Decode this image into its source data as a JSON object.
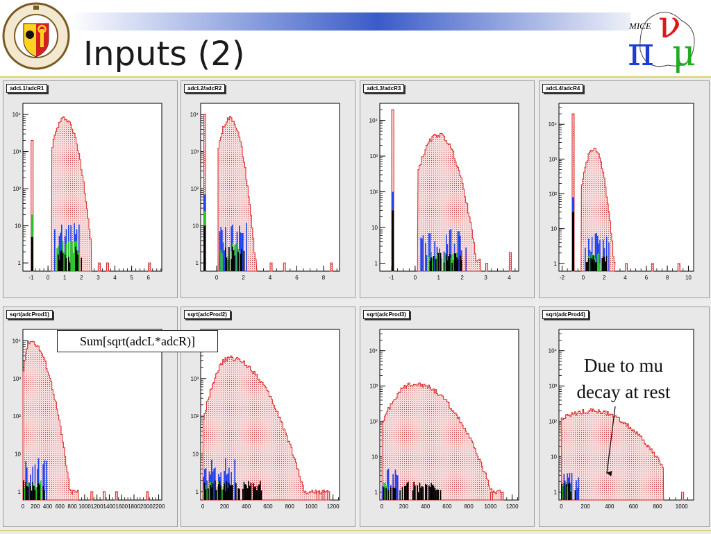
{
  "slide": {
    "title": "Inputs (2)",
    "callout": "Sum[sqrt(adcL*adcR)]",
    "annotation_line1": "Due to mu",
    "annotation_line2": "decay at rest",
    "logo_right_text": "MICE",
    "accent_color": "#d8d270",
    "header_bar_colors": [
      "#ffffff",
      "#3050b0"
    ]
  },
  "chart_data": [
    {
      "type": "histogram",
      "title": "adcL1/adcR1",
      "log_y": true,
      "xlim": [
        -1.5,
        6.8
      ],
      "ylim": [
        0.6,
        20000
      ],
      "xticks": [
        -1,
        0,
        1,
        2,
        3,
        4,
        5,
        6
      ],
      "xtick_labels": [
        "-1",
        "0",
        "1",
        "2",
        "3",
        "4",
        "5",
        "6"
      ],
      "yticks": [
        1,
        10,
        100,
        1000,
        10000
      ],
      "ytick_labels": [
        "1",
        "10",
        "10²",
        "10³",
        "10⁴"
      ],
      "series": [
        {
          "color": "#dd2222",
          "shape": "peak",
          "peak_x": 1.0,
          "peak_y": 8000,
          "width": 0.4,
          "floor": 1.2,
          "range": [
            0.2,
            2.6
          ],
          "spike_x": -0.95,
          "spike_y": 2000,
          "outliers": [
            [
              3.0,
              1
            ],
            [
              3.5,
              1
            ],
            [
              6.0,
              1
            ]
          ]
        },
        {
          "color": "#2244ee",
          "shape": "cluster",
          "range": [
            0.4,
            1.9
          ],
          "max": 12,
          "spike_x": -0.95,
          "spike_y": 20
        },
        {
          "color": "#22cc22",
          "shape": "cluster",
          "range": [
            0.5,
            1.9
          ],
          "max": 4,
          "spike_x": -0.95,
          "spike_y": 20
        },
        {
          "color": "#000000",
          "shape": "cluster",
          "range": [
            0.6,
            2.0
          ],
          "max": 3,
          "spike_x": -0.95,
          "spike_y": 5
        }
      ]
    },
    {
      "type": "histogram",
      "title": "adcL2/adcR2",
      "log_y": true,
      "xlim": [
        -1.2,
        9.2
      ],
      "ylim": [
        0.6,
        20000
      ],
      "xticks": [
        0,
        2,
        4,
        6,
        8
      ],
      "xtick_labels": [
        "0",
        "2",
        "4",
        "6",
        "8"
      ],
      "yticks": [
        1,
        10,
        100,
        1000,
        10000
      ],
      "ytick_labels": [
        "1",
        "10",
        "10²",
        "10³",
        "10⁴"
      ],
      "series": [
        {
          "color": "#dd2222",
          "shape": "peak",
          "peak_x": 1.0,
          "peak_y": 8000,
          "width": 0.45,
          "floor": 1.2,
          "range": [
            0.1,
            3.0
          ],
          "spike_x": -0.9,
          "spike_y": 10000,
          "outliers": [
            [
              4.0,
              1
            ],
            [
              5.0,
              1
            ],
            [
              8.5,
              1
            ]
          ]
        },
        {
          "color": "#2244ee",
          "shape": "cluster",
          "range": [
            0.2,
            2.3
          ],
          "max": 12,
          "spike_x": -0.9,
          "spike_y": 70
        },
        {
          "color": "#22cc22",
          "shape": "cluster",
          "range": [
            0.3,
            2.0
          ],
          "max": 4,
          "spike_x": -0.9,
          "spike_y": 25
        },
        {
          "color": "#000000",
          "shape": "cluster",
          "range": [
            0.4,
            2.2
          ],
          "max": 3,
          "spike_x": -0.9,
          "spike_y": 10
        }
      ]
    },
    {
      "type": "histogram",
      "title": "adcL3/adcR3",
      "log_y": true,
      "xlim": [
        -1.5,
        4.4
      ],
      "ylim": [
        0.6,
        30000
      ],
      "xticks": [
        -1,
        0,
        1,
        2,
        3,
        4
      ],
      "xtick_labels": [
        "-1",
        "0",
        "1",
        "2",
        "3",
        "4"
      ],
      "yticks": [
        1,
        10,
        100,
        1000,
        10000
      ],
      "ytick_labels": [
        "1",
        "10",
        "10²",
        "10³",
        "10⁴"
      ],
      "series": [
        {
          "color": "#dd2222",
          "shape": "peak",
          "peak_x": 1.0,
          "peak_y": 4000,
          "width": 0.4,
          "floor": 1.2,
          "range": [
            0.1,
            2.8
          ],
          "spike_x": -0.95,
          "spike_y": 20000,
          "outliers": [
            [
              3.0,
              1
            ],
            [
              4.0,
              2
            ]
          ]
        },
        {
          "color": "#2244ee",
          "shape": "cluster",
          "range": [
            0.2,
            2.2
          ],
          "max": 10,
          "spike_x": -0.95,
          "spike_y": 100
        },
        {
          "color": "#22cc22",
          "shape": "cluster",
          "range": [
            0.4,
            1.8
          ],
          "max": 2,
          "spike_x": -0.95,
          "spike_y": 20
        },
        {
          "color": "#000000",
          "shape": "cluster",
          "range": [
            0.6,
            2.0
          ],
          "max": 2,
          "spike_x": -0.95,
          "spike_y": 30
        }
      ]
    },
    {
      "type": "histogram",
      "title": "adcL4/adcR4",
      "log_y": true,
      "xlim": [
        -2.3,
        10.5
      ],
      "ylim": [
        0.6,
        40000
      ],
      "xticks": [
        -2,
        0,
        2,
        4,
        6,
        8,
        10
      ],
      "xtick_labels": [
        "-2",
        "0",
        "2",
        "4",
        "6",
        "8",
        "10"
      ],
      "yticks": [
        1,
        10,
        100,
        1000,
        10000
      ],
      "ytick_labels": [
        "1",
        "10",
        "10²",
        "10³",
        "10⁴"
      ],
      "series": [
        {
          "color": "#dd2222",
          "shape": "peak",
          "peak_x": 1.0,
          "peak_y": 2000,
          "width": 0.5,
          "floor": 1.2,
          "range": [
            -0.2,
            3.0
          ],
          "spike_x": -0.95,
          "spike_y": 20000,
          "outliers": [
            [
              4.0,
              1
            ],
            [
              6.5,
              1
            ],
            [
              9.0,
              1
            ]
          ]
        },
        {
          "color": "#2244ee",
          "shape": "cluster",
          "range": [
            0.0,
            2.5
          ],
          "max": 8,
          "spike_x": -0.95,
          "spike_y": 80
        },
        {
          "color": "#22cc22",
          "shape": "cluster",
          "range": [
            0.3,
            1.6
          ],
          "max": 2,
          "spike_x": -0.95,
          "spike_y": 5
        },
        {
          "color": "#000000",
          "shape": "cluster",
          "range": [
            0.3,
            2.3
          ],
          "max": 2,
          "spike_x": -0.95,
          "spike_y": 30
        }
      ]
    },
    {
      "type": "histogram",
      "title": "sqrt(adcProd1)",
      "log_y": true,
      "xlim": [
        0,
        2250
      ],
      "ylim": [
        0.6,
        20000
      ],
      "xticks": [
        0,
        200,
        400,
        600,
        800,
        1000,
        1200,
        1400,
        1600,
        1800,
        2000,
        2200
      ],
      "xtick_labels": [
        "0",
        "200",
        "400",
        "600",
        "800",
        "1000",
        "1200",
        "1400",
        "1600",
        "1800",
        "2000",
        "2200"
      ],
      "yticks": [
        1,
        10,
        100,
        1000,
        10000
      ],
      "ytick_labels": [
        "1",
        "10",
        "10²",
        "10³",
        "10⁴"
      ],
      "series": [
        {
          "color": "#dd2222",
          "shape": "peak",
          "peak_x": 120,
          "peak_y": 10000,
          "width": 60,
          "tail": 150,
          "floor": 1.0,
          "range": [
            0,
            900
          ],
          "outliers": [
            [
              1100,
              1
            ],
            [
              1300,
              1
            ],
            [
              1500,
              1
            ],
            [
              2000,
              1
            ]
          ]
        },
        {
          "color": "#2244ee",
          "shape": "cluster",
          "range": [
            0,
            400
          ],
          "max": 8
        },
        {
          "color": "#22cc22",
          "shape": "cluster",
          "range": [
            0,
            300
          ],
          "max": 2
        },
        {
          "color": "#000000",
          "shape": "cluster",
          "range": [
            0,
            350
          ],
          "max": 2
        }
      ]
    },
    {
      "type": "histogram",
      "title": "sqrt(adcProd2)",
      "log_y": true,
      "xlim": [
        -20,
        1260
      ],
      "ylim": [
        0.6,
        20000
      ],
      "xticks": [
        0,
        200,
        400,
        600,
        800,
        1000,
        1200
      ],
      "xtick_labels": [
        "0",
        "200",
        "400",
        "600",
        "800",
        "1000",
        "1200"
      ],
      "yticks": [
        1,
        10,
        100,
        1000,
        10000
      ],
      "ytick_labels": [
        "1",
        "10",
        "10²",
        "10³",
        "10⁴"
      ],
      "series": [
        {
          "color": "#dd2222",
          "shape": "peak",
          "peak_x": 250,
          "peak_y": 3500,
          "width": 90,
          "tail": 170,
          "floor": 1.0,
          "range": [
            0,
            1150
          ],
          "outliers": [
            [
              1050,
              1
            ],
            [
              1100,
              1
            ],
            [
              1150,
              1
            ]
          ]
        },
        {
          "color": "#2244ee",
          "shape": "cluster",
          "range": [
            0,
            300
          ],
          "max": 8
        },
        {
          "color": "#22cc22",
          "shape": "cluster",
          "range": [
            0,
            200
          ],
          "max": 2
        },
        {
          "color": "#000000",
          "shape": "cluster",
          "range": [
            0,
            550
          ],
          "max": 2
        }
      ]
    },
    {
      "type": "histogram",
      "title": "sqrt(adcProd3)",
      "log_y": true,
      "xlim": [
        -20,
        1260
      ],
      "ylim": [
        0.6,
        40000
      ],
      "xticks": [
        0,
        200,
        400,
        600,
        800,
        1000,
        1200
      ],
      "xtick_labels": [
        "0",
        "200",
        "400",
        "600",
        "800",
        "1000",
        "1200"
      ],
      "yticks": [
        1,
        10,
        100,
        1000,
        10000
      ],
      "ytick_labels": [
        "1",
        "10",
        "10²",
        "10³",
        "10⁴"
      ],
      "series": [
        {
          "color": "#dd2222",
          "shape": "peak",
          "peak_x": 300,
          "peak_y": 1200,
          "width": 130,
          "tail": 190,
          "floor": 1.0,
          "range": [
            0,
            1100
          ],
          "outliers": [
            [
              1000,
              1
            ],
            [
              1100,
              1
            ]
          ]
        },
        {
          "color": "#2244ee",
          "shape": "cluster",
          "range": [
            0,
            150
          ],
          "max": 5
        },
        {
          "color": "#22cc22",
          "shape": "cluster",
          "range": [
            0,
            60
          ],
          "max": 2
        },
        {
          "color": "#000000",
          "shape": "cluster",
          "range": [
            0,
            550
          ],
          "max": 2
        }
      ]
    },
    {
      "type": "histogram",
      "title": "sqrt(adcProd4)",
      "log_y": true,
      "xlim": [
        -20,
        1100
      ],
      "ylim": [
        0.6,
        40000
      ],
      "xticks": [
        0,
        200,
        400,
        600,
        800,
        1000
      ],
      "xtick_labels": [
        "0",
        "200",
        "400",
        "600",
        "800",
        "1000"
      ],
      "yticks": [
        1,
        10,
        100,
        1000,
        10000
      ],
      "ytick_labels": [
        "1",
        "10",
        "10²",
        "10³",
        "10⁴"
      ],
      "series": [
        {
          "color": "#dd2222",
          "shape": "peak",
          "peak_x": 250,
          "peak_y": 200,
          "width": 240,
          "tail": 220,
          "floor": 1.0,
          "range": [
            0,
            850
          ],
          "outliers": [
            [
              1000,
              1
            ]
          ]
        },
        {
          "color": "#2244ee",
          "shape": "cluster",
          "range": [
            0,
            150
          ],
          "max": 4
        },
        {
          "color": "#22cc22",
          "shape": "cluster",
          "range": [
            0,
            80
          ],
          "max": 2
        },
        {
          "color": "#000000",
          "shape": "cluster",
          "range": [
            0,
            120
          ],
          "max": 2
        }
      ]
    }
  ]
}
